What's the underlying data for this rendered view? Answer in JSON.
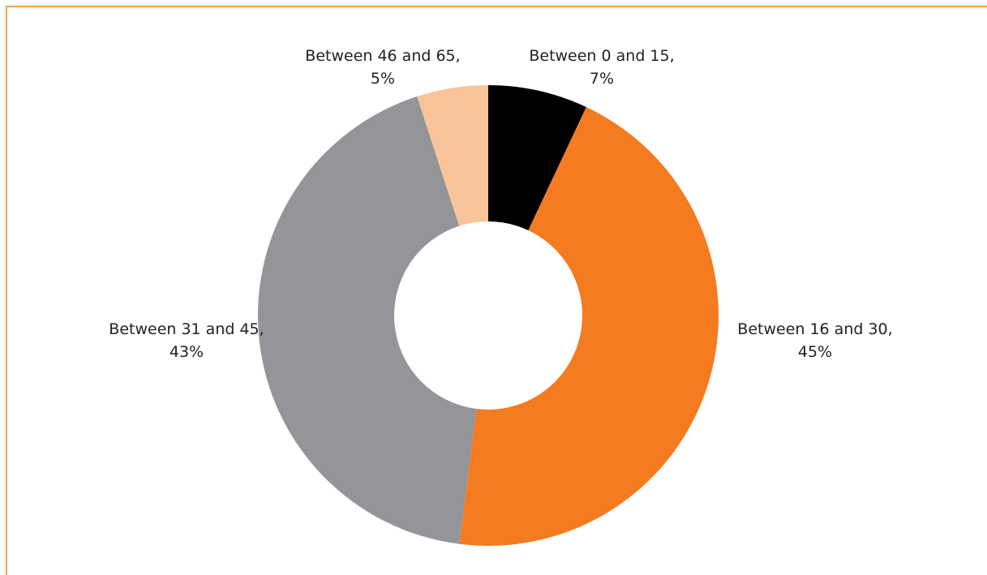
{
  "chart_data": {
    "type": "pie",
    "variant": "donut",
    "title": "",
    "slices": [
      {
        "label": "Between 0 and 15,",
        "pct_label": "7%",
        "value": 7,
        "color": "#000000"
      },
      {
        "label": "Between 16 and 30,",
        "pct_label": "45%",
        "value": 45,
        "color": "#f47b20"
      },
      {
        "label": "Between 31 and 45,",
        "pct_label": "43%",
        "value": 43,
        "color": "#939598"
      },
      {
        "label": "Between 46 and 65,",
        "pct_label": "5%",
        "value": 5,
        "color": "#f9c49a"
      }
    ],
    "legend": "none",
    "frame_color": "#f0a04b"
  }
}
